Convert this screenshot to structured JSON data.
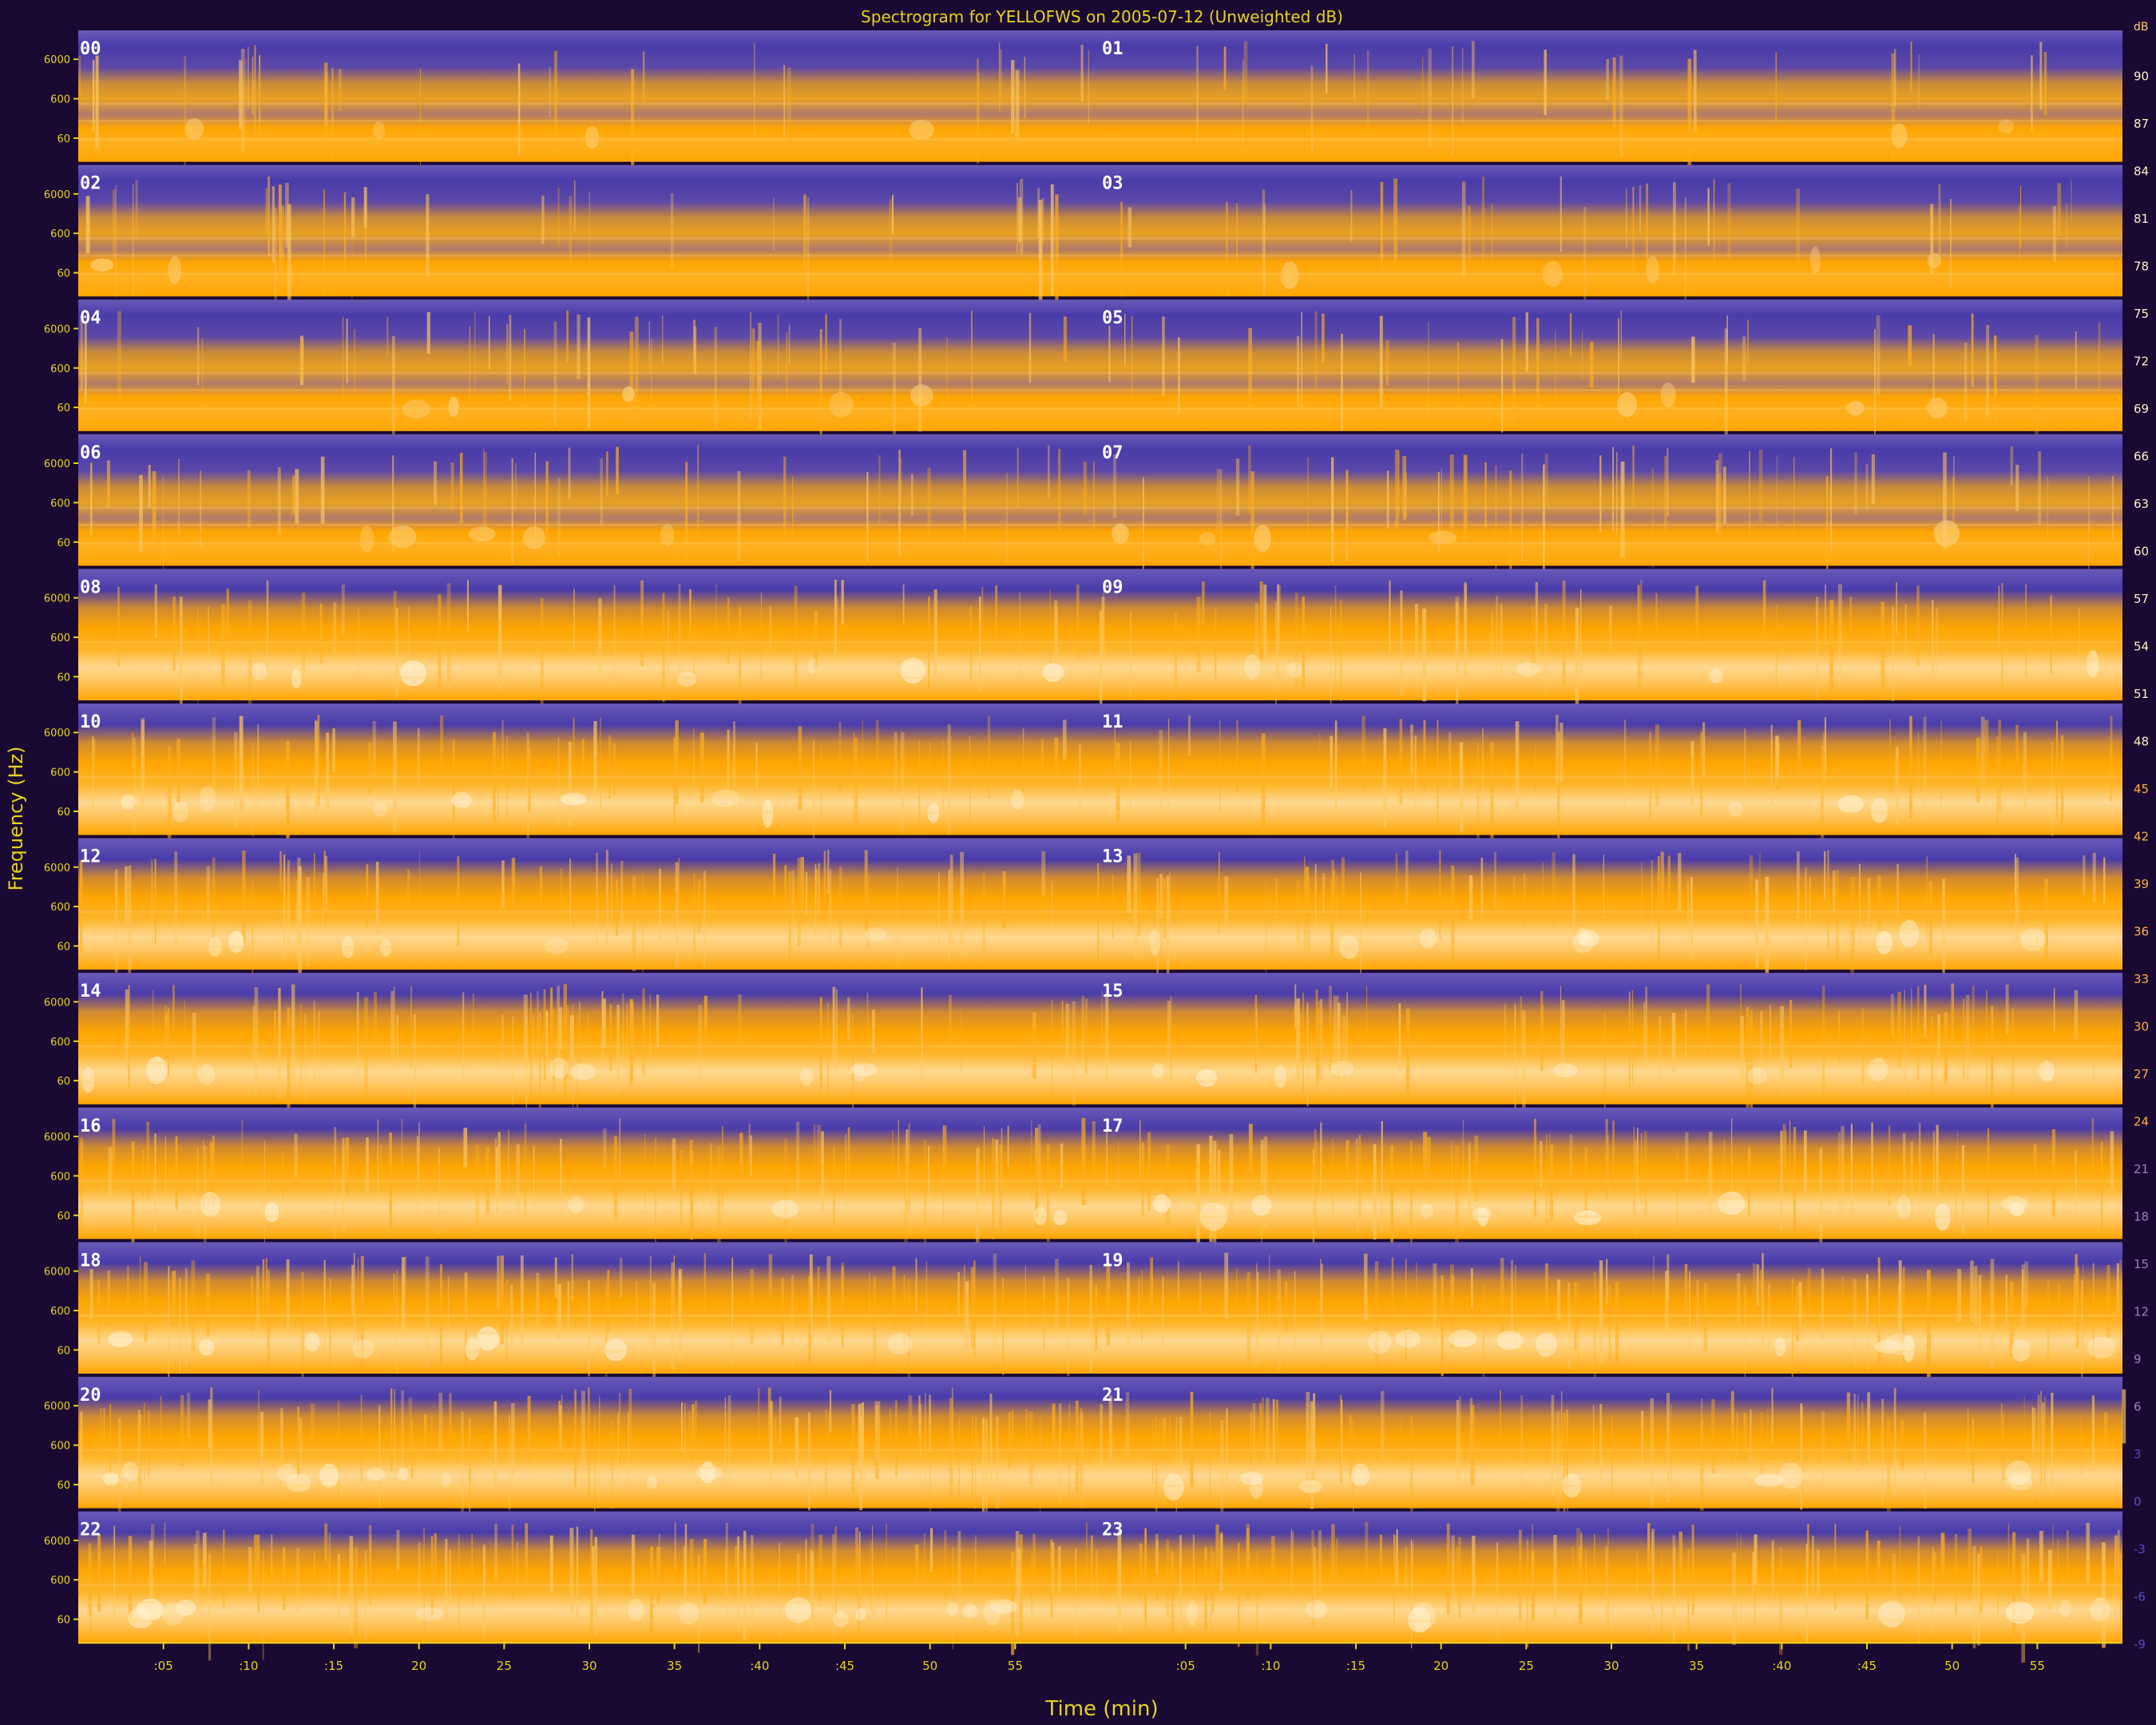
{
  "chart_data": {
    "type": "heatmap",
    "title": "Spectrogram for YELLOFWS on 2005-07-12 (Unweighted dB)",
    "xlabel": "Time (min)",
    "ylabel": "Frequency (Hz)",
    "colorbar_unit": "dB",
    "rows": [
      {
        "left_hour": "00",
        "right_hour": "01"
      },
      {
        "left_hour": "02",
        "right_hour": "03"
      },
      {
        "left_hour": "04",
        "right_hour": "05"
      },
      {
        "left_hour": "06",
        "right_hour": "07"
      },
      {
        "left_hour": "08",
        "right_hour": "09"
      },
      {
        "left_hour": "10",
        "right_hour": "11"
      },
      {
        "left_hour": "12",
        "right_hour": "13"
      },
      {
        "left_hour": "14",
        "right_hour": "15"
      },
      {
        "left_hour": "16",
        "right_hour": "17"
      },
      {
        "left_hour": "18",
        "right_hour": "19"
      },
      {
        "left_hour": "20",
        "right_hour": "21"
      },
      {
        "left_hour": "22",
        "right_hour": "23"
      }
    ],
    "freq_ticks": [
      "6000",
      "600",
      "60"
    ],
    "time_ticks": [
      ":05",
      ":10",
      ":15",
      "20",
      "25",
      "30",
      "35",
      ":40",
      ":45",
      "50",
      "55"
    ],
    "time_tick_minutes": [
      5,
      10,
      15,
      20,
      25,
      30,
      35,
      40,
      45,
      50,
      55
    ],
    "colorbar_ticks": [
      90,
      87,
      84,
      81,
      78,
      75,
      72,
      69,
      66,
      63,
      60,
      57,
      54,
      51,
      48,
      45,
      42,
      39,
      36,
      33,
      30,
      27,
      24,
      21,
      18,
      15,
      12,
      9,
      6,
      3,
      0,
      -3,
      -6,
      -9
    ],
    "db_range": [
      -9,
      93
    ],
    "colors": {
      "background": "#1a0a33",
      "label_yellow": "#e8d21e",
      "low_purple": "#4a3caa",
      "mid_orange": "#ffa500",
      "high_cream": "#fff0c8",
      "hour_label": "#ffffff"
    }
  }
}
